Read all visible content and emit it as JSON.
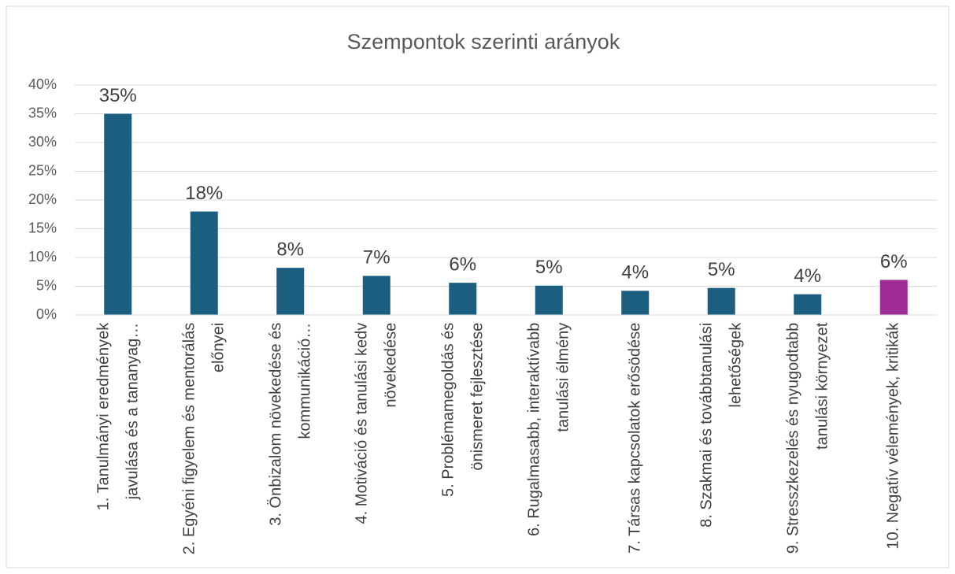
{
  "chart_data": {
    "type": "bar",
    "title": "Szempontok szerinti arányok",
    "categories": [
      "1. Tanulmányi eredmények javulása és a tananyag…",
      "2. Egyéni figyelem és mentorálás előnyei",
      "3. Önbizalom növekedése és kommunikáció…",
      "4. Motiváció és tanulási kedv növekedése",
      "5. Problémamegoldás és önismeret fejlesztése",
      "6. Rugalmasabb, interaktívabb tanulási élmény",
      "7. Társas kapcsolatok erősödése",
      "8. Szakmai és továbbtanulási lehetőségek",
      "9. Stresszkezelés és nyugodtabb tanulási környezet",
      "10. Negatív vélemények, kritikák"
    ],
    "values": [
      35,
      18,
      8.2,
      6.8,
      5.6,
      5.1,
      4.2,
      4.7,
      3.6,
      6.1
    ],
    "value_labels": [
      "35%",
      "18%",
      "8%",
      "7%",
      "6%",
      "5%",
      "4%",
      "5%",
      "4%",
      "6%"
    ],
    "colors": [
      "#1b5e80",
      "#1b5e80",
      "#1b5e80",
      "#1b5e80",
      "#1b5e80",
      "#1b5e80",
      "#1b5e80",
      "#1b5e80",
      "#1b5e80",
      "#a02d96"
    ],
    "ylim": [
      0,
      40
    ],
    "yticks": [
      {
        "value": 0,
        "label": "0%"
      },
      {
        "value": 5,
        "label": "5%"
      },
      {
        "value": 10,
        "label": "10%"
      },
      {
        "value": 15,
        "label": "15%"
      },
      {
        "value": 20,
        "label": "20%"
      },
      {
        "value": 25,
        "label": "25%"
      },
      {
        "value": 30,
        "label": "30%"
      },
      {
        "value": 35,
        "label": "35%"
      },
      {
        "value": 40,
        "label": "40%"
      }
    ],
    "grid": true
  }
}
